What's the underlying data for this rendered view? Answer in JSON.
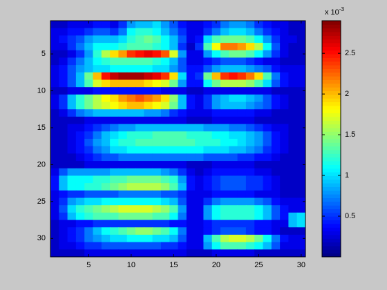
{
  "chart_data": {
    "type": "heatmap",
    "colormap": "jet",
    "xlim": [
      0.5,
      30.5
    ],
    "ylim": [
      0.5,
      32.5
    ],
    "y_reversed": true,
    "xticks": [
      5,
      10,
      15,
      20,
      25,
      30
    ],
    "yticks": [
      5,
      10,
      15,
      20,
      25,
      30
    ],
    "clim": [
      0,
      2.9
    ],
    "cticks": [
      0.5,
      1,
      1.5,
      2,
      2.5
    ],
    "colorbar_label": {
      "base": "x 10",
      "exponent": "-3"
    },
    "z": [
      [
        0.2,
        0.2,
        0.3,
        0.3,
        0.3,
        0.4,
        0.4,
        0.3,
        0.5,
        0.8,
        0.9,
        0.9,
        1.0,
        0.8,
        0.6,
        0.4,
        0.3,
        0.3,
        0.4,
        0.5,
        0.7,
        0.8,
        0.8,
        0.7,
        0.5,
        0.4,
        0.3,
        0.3,
        0.2,
        0.2
      ],
      [
        0.3,
        0.3,
        0.4,
        0.4,
        0.5,
        0.6,
        0.6,
        0.5,
        0.7,
        1.1,
        1.2,
        1.2,
        1.1,
        0.9,
        0.7,
        0.5,
        0.3,
        0.3,
        0.5,
        0.7,
        0.9,
        1.0,
        1.0,
        0.9,
        0.7,
        0.5,
        0.4,
        0.3,
        0.2,
        0.2
      ],
      [
        0.3,
        0.4,
        0.5,
        0.6,
        0.8,
        0.9,
        0.9,
        0.9,
        1.0,
        1.2,
        1.3,
        1.4,
        1.3,
        1.1,
        0.9,
        0.6,
        0.3,
        0.4,
        1.0,
        1.3,
        1.4,
        1.4,
        1.4,
        1.3,
        1.1,
        0.8,
        0.5,
        0.3,
        0.3,
        0.2
      ],
      [
        0.3,
        0.3,
        0.5,
        0.7,
        0.9,
        1.1,
        1.1,
        1.1,
        1.2,
        1.3,
        1.3,
        1.3,
        1.2,
        1.1,
        0.9,
        0.5,
        0.2,
        0.5,
        1.3,
        1.8,
        2.2,
        2.2,
        2.1,
        1.9,
        1.6,
        1.1,
        0.6,
        0.3,
        0.2,
        0.2
      ],
      [
        0.2,
        0.2,
        0.3,
        0.5,
        0.8,
        1.2,
        1.6,
        1.9,
        2.1,
        2.4,
        2.5,
        2.6,
        2.5,
        2.3,
        1.7,
        0.8,
        0.3,
        0.3,
        0.8,
        1.1,
        1.3,
        1.4,
        1.4,
        1.3,
        1.1,
        0.8,
        0.5,
        0.3,
        0.2,
        0.2
      ],
      [
        0.2,
        0.3,
        0.5,
        0.7,
        0.9,
        1.1,
        1.2,
        1.3,
        1.3,
        1.3,
        1.3,
        1.3,
        1.2,
        1.1,
        0.9,
        0.6,
        0.3,
        0.3,
        0.4,
        0.5,
        0.6,
        0.6,
        0.6,
        0.5,
        0.4,
        0.3,
        0.3,
        0.2,
        0.2,
        0.2
      ],
      [
        0.3,
        0.4,
        0.6,
        0.8,
        0.9,
        1.0,
        1.0,
        1.1,
        1.1,
        1.1,
        1.1,
        1.1,
        1.0,
        1.0,
        0.8,
        0.6,
        0.4,
        0.4,
        0.6,
        0.8,
        0.9,
        0.9,
        0.9,
        0.8,
        0.7,
        0.6,
        0.4,
        0.3,
        0.3,
        0.3
      ],
      [
        0.3,
        0.4,
        0.6,
        0.9,
        1.4,
        2.0,
        2.5,
        2.7,
        2.8,
        2.8,
        2.8,
        2.7,
        2.6,
        2.4,
        1.9,
        1.0,
        0.4,
        0.5,
        1.4,
        2.0,
        2.4,
        2.5,
        2.4,
        2.2,
        1.9,
        1.3,
        0.7,
        0.4,
        0.3,
        0.3
      ],
      [
        0.3,
        0.4,
        0.6,
        0.9,
        1.3,
        1.7,
        1.9,
        2.0,
        2.0,
        2.0,
        2.0,
        1.9,
        1.8,
        1.7,
        1.4,
        0.8,
        0.4,
        0.4,
        1.1,
        1.4,
        1.6,
        1.6,
        1.6,
        1.5,
        1.3,
        1.0,
        0.6,
        0.4,
        0.3,
        0.3
      ],
      [
        0.2,
        0.2,
        0.3,
        0.3,
        0.3,
        0.4,
        0.4,
        0.4,
        0.4,
        0.4,
        0.4,
        0.4,
        0.4,
        0.3,
        0.3,
        0.3,
        0.2,
        0.2,
        0.3,
        0.3,
        0.3,
        0.3,
        0.3,
        0.3,
        0.3,
        0.3,
        0.2,
        0.2,
        0.2,
        0.2
      ],
      [
        0.3,
        0.5,
        0.9,
        1.2,
        1.4,
        1.6,
        1.8,
        1.9,
        2.1,
        2.2,
        2.3,
        2.2,
        2.1,
        1.9,
        1.5,
        0.9,
        0.4,
        0.3,
        0.5,
        0.8,
        0.9,
        1.0,
        1.0,
        0.9,
        0.8,
        0.6,
        0.4,
        0.3,
        0.2,
        0.2
      ],
      [
        0.3,
        0.5,
        0.9,
        1.2,
        1.4,
        1.6,
        1.7,
        1.8,
        1.9,
        2.0,
        2.0,
        1.9,
        1.8,
        1.7,
        1.4,
        0.9,
        0.4,
        0.3,
        0.5,
        0.8,
        0.9,
        0.9,
        0.9,
        0.8,
        0.7,
        0.6,
        0.4,
        0.3,
        0.2,
        0.2
      ],
      [
        0.2,
        0.3,
        0.5,
        0.7,
        0.8,
        0.9,
        0.9,
        0.9,
        0.9,
        0.9,
        0.9,
        0.8,
        0.8,
        0.7,
        0.5,
        0.4,
        0.3,
        0.3,
        0.3,
        0.4,
        0.4,
        0.4,
        0.4,
        0.4,
        0.3,
        0.3,
        0.2,
        0.2,
        0.2,
        0.2
      ],
      [
        0.2,
        0.2,
        0.2,
        0.2,
        0.3,
        0.3,
        0.3,
        0.3,
        0.3,
        0.3,
        0.3,
        0.3,
        0.3,
        0.3,
        0.3,
        0.3,
        0.2,
        0.2,
        0.2,
        0.3,
        0.3,
        0.3,
        0.3,
        0.3,
        0.2,
        0.2,
        0.2,
        0.2,
        0.2,
        0.2
      ],
      [
        0.2,
        0.2,
        0.3,
        0.3,
        0.4,
        0.5,
        0.6,
        0.7,
        0.8,
        0.8,
        0.9,
        0.9,
        0.9,
        0.9,
        0.9,
        0.9,
        0.9,
        0.9,
        0.8,
        0.8,
        0.8,
        0.7,
        0.7,
        0.6,
        0.5,
        0.4,
        0.3,
        0.3,
        0.2,
        0.2
      ],
      [
        0.2,
        0.2,
        0.3,
        0.4,
        0.5,
        0.7,
        0.9,
        1.0,
        1.1,
        1.2,
        1.2,
        1.2,
        1.3,
        1.3,
        1.3,
        1.3,
        1.2,
        1.2,
        1.2,
        1.1,
        1.1,
        1.0,
        1.0,
        0.9,
        0.8,
        0.6,
        0.4,
        0.3,
        0.2,
        0.2
      ],
      [
        0.2,
        0.2,
        0.3,
        0.4,
        0.6,
        0.8,
        0.9,
        1.1,
        1.2,
        1.2,
        1.3,
        1.3,
        1.3,
        1.3,
        1.3,
        1.3,
        1.3,
        1.2,
        1.2,
        1.2,
        1.1,
        1.1,
        1.0,
        0.9,
        0.8,
        0.6,
        0.4,
        0.3,
        0.2,
        0.2
      ],
      [
        0.2,
        0.2,
        0.3,
        0.4,
        0.5,
        0.7,
        0.8,
        1.0,
        1.0,
        1.1,
        1.1,
        1.1,
        1.1,
        1.1,
        1.1,
        1.1,
        1.1,
        1.1,
        1.0,
        1.0,
        1.0,
        0.9,
        0.9,
        0.8,
        0.7,
        0.5,
        0.4,
        0.3,
        0.2,
        0.2
      ],
      [
        0.2,
        0.2,
        0.2,
        0.3,
        0.4,
        0.5,
        0.6,
        0.6,
        0.7,
        0.7,
        0.7,
        0.7,
        0.7,
        0.7,
        0.7,
        0.7,
        0.7,
        0.7,
        0.6,
        0.6,
        0.6,
        0.6,
        0.5,
        0.5,
        0.4,
        0.4,
        0.3,
        0.2,
        0.2,
        0.2
      ],
      [
        0.2,
        0.2,
        0.2,
        0.2,
        0.3,
        0.3,
        0.3,
        0.3,
        0.3,
        0.3,
        0.3,
        0.3,
        0.3,
        0.3,
        0.3,
        0.3,
        0.2,
        0.2,
        0.2,
        0.3,
        0.3,
        0.3,
        0.3,
        0.3,
        0.2,
        0.2,
        0.2,
        0.2,
        0.2,
        0.2
      ],
      [
        0.3,
        0.6,
        0.8,
        0.8,
        0.8,
        0.8,
        0.8,
        0.9,
        0.9,
        0.9,
        0.9,
        0.9,
        0.9,
        0.8,
        0.7,
        0.5,
        0.3,
        0.2,
        0.3,
        0.4,
        0.4,
        0.4,
        0.4,
        0.4,
        0.3,
        0.3,
        0.2,
        0.2,
        0.2,
        0.2
      ],
      [
        0.4,
        0.9,
        1.1,
        1.1,
        1.1,
        1.2,
        1.2,
        1.3,
        1.3,
        1.4,
        1.4,
        1.4,
        1.4,
        1.3,
        1.2,
        0.8,
        0.4,
        0.3,
        0.4,
        0.5,
        0.6,
        0.6,
        0.6,
        0.5,
        0.5,
        0.4,
        0.3,
        0.2,
        0.2,
        0.2
      ],
      [
        0.4,
        0.9,
        1.1,
        1.1,
        1.2,
        1.2,
        1.3,
        1.4,
        1.5,
        1.6,
        1.6,
        1.6,
        1.6,
        1.5,
        1.3,
        0.9,
        0.4,
        0.3,
        0.4,
        0.5,
        0.6,
        0.6,
        0.6,
        0.5,
        0.5,
        0.4,
        0.3,
        0.2,
        0.2,
        0.2
      ],
      [
        0.3,
        0.4,
        0.5,
        0.5,
        0.6,
        0.6,
        0.6,
        0.6,
        0.7,
        0.7,
        0.7,
        0.7,
        0.7,
        0.6,
        0.6,
        0.5,
        0.3,
        0.3,
        0.3,
        0.4,
        0.4,
        0.4,
        0.4,
        0.4,
        0.3,
        0.3,
        0.3,
        0.2,
        0.2,
        0.2
      ],
      [
        0.3,
        0.5,
        0.8,
        0.9,
        1.0,
        1.0,
        1.1,
        1.1,
        1.1,
        1.1,
        1.1,
        1.1,
        1.1,
        1.0,
        0.9,
        0.6,
        0.3,
        0.3,
        0.5,
        0.7,
        0.8,
        0.8,
        0.8,
        0.8,
        0.7,
        0.6,
        0.4,
        0.3,
        0.3,
        0.3
      ],
      [
        0.3,
        0.6,
        1.0,
        1.2,
        1.3,
        1.4,
        1.5,
        1.6,
        1.7,
        1.7,
        1.7,
        1.7,
        1.6,
        1.5,
        1.3,
        0.8,
        0.3,
        0.3,
        0.8,
        1.1,
        1.2,
        1.2,
        1.2,
        1.2,
        1.1,
        0.9,
        0.6,
        0.4,
        0.3,
        0.3
      ],
      [
        0.3,
        0.5,
        0.9,
        1.1,
        1.2,
        1.3,
        1.3,
        1.3,
        1.4,
        1.4,
        1.4,
        1.4,
        1.3,
        1.3,
        1.1,
        0.7,
        0.3,
        0.3,
        0.8,
        1.1,
        1.2,
        1.2,
        1.2,
        1.2,
        1.1,
        0.9,
        0.6,
        0.4,
        0.9,
        1.0
      ],
      [
        0.2,
        0.3,
        0.3,
        0.4,
        0.4,
        0.5,
        0.5,
        0.5,
        0.5,
        0.5,
        0.5,
        0.5,
        0.5,
        0.5,
        0.4,
        0.4,
        0.3,
        0.3,
        0.4,
        0.5,
        0.5,
        0.5,
        0.5,
        0.5,
        0.4,
        0.4,
        0.3,
        0.3,
        0.9,
        1.0
      ],
      [
        0.2,
        0.3,
        0.4,
        0.5,
        0.7,
        0.9,
        1.1,
        1.2,
        1.3,
        1.4,
        1.5,
        1.5,
        1.4,
        1.3,
        1.1,
        0.7,
        0.3,
        0.3,
        0.4,
        0.5,
        0.6,
        0.6,
        0.6,
        0.5,
        0.4,
        0.4,
        0.3,
        0.2,
        0.2,
        0.2
      ],
      [
        0.2,
        0.3,
        0.4,
        0.5,
        0.7,
        0.8,
        0.9,
        1.0,
        1.0,
        1.1,
        1.1,
        1.1,
        1.0,
        1.0,
        0.9,
        0.6,
        0.3,
        0.3,
        0.9,
        1.3,
        1.6,
        1.7,
        1.7,
        1.6,
        1.4,
        1.1,
        0.7,
        0.4,
        0.3,
        0.3
      ],
      [
        0.2,
        0.3,
        0.3,
        0.4,
        0.5,
        0.5,
        0.6,
        0.6,
        0.6,
        0.6,
        0.6,
        0.6,
        0.6,
        0.5,
        0.5,
        0.4,
        0.3,
        0.3,
        0.8,
        1.1,
        1.3,
        1.3,
        1.3,
        1.2,
        1.1,
        0.9,
        0.6,
        0.3,
        0.3,
        0.3
      ],
      [
        0.2,
        0.2,
        0.2,
        0.2,
        0.3,
        0.3,
        0.3,
        0.3,
        0.3,
        0.3,
        0.3,
        0.3,
        0.3,
        0.3,
        0.3,
        0.3,
        0.2,
        0.2,
        0.2,
        0.3,
        0.3,
        0.3,
        0.3,
        0.3,
        0.2,
        0.2,
        0.2,
        0.2,
        0.2,
        0.2
      ]
    ]
  }
}
